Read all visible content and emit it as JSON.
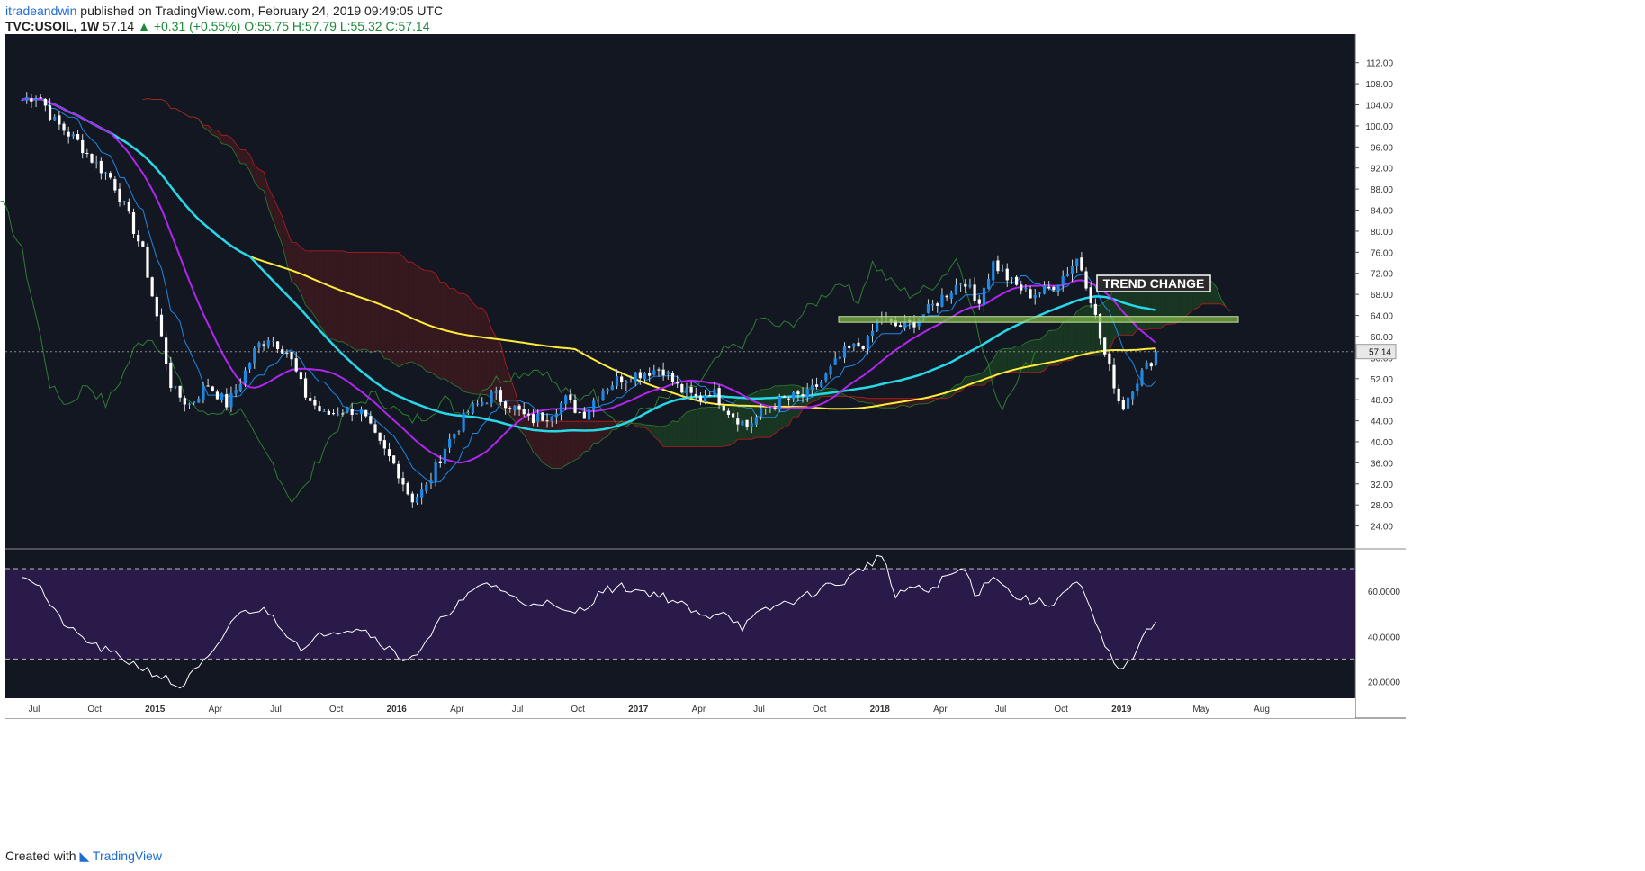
{
  "header": {
    "publisher": "itradeandwin",
    "published_text": "published on TradingView.com, February 24, 2019 09:49:05 UTC",
    "symbol": "TVC:USOIL, 1W",
    "last": "57.14",
    "change": "+0.31 (+0.55%)",
    "ohlc": "O:55.75 H:57.79 L:55.32 C:57.14"
  },
  "footer": {
    "created_with": "Created with",
    "brand": "TradingView"
  },
  "colors": {
    "background": "#131722",
    "candle_up": "#1e88e5",
    "candle_down": "#ffffff",
    "ma_long": "#ffeb3b",
    "ma_mid": "#26d8e8",
    "ma_short": "#b026f0",
    "conversion_line": "#1e88e5",
    "lagging_span": "#2e7d32",
    "cloud_bull": "#1b3a23",
    "cloud_bear": "#3a1a1e",
    "rsi_line": "#ffffff",
    "rsi_band": "#2a1a4a",
    "zone": "#7cb342"
  },
  "annotations": {
    "trend_change": "TREND CHANGE",
    "price_label": "57.14"
  },
  "chart_data": {
    "type": "candlestick",
    "title": "TVC:USOIL, 1W",
    "x_ticks": [
      "Jul",
      "Oct",
      "2015",
      "Apr",
      "Jul",
      "Oct",
      "2016",
      "Apr",
      "Jul",
      "Oct",
      "2017",
      "Apr",
      "Jul",
      "Oct",
      "2018",
      "Apr",
      "Jul",
      "Oct",
      "2019",
      "May",
      "Aug"
    ],
    "y_ticks": [
      "112.00",
      "108.00",
      "104.00",
      "100.00",
      "96.00",
      "92.00",
      "88.00",
      "84.00",
      "80.00",
      "76.00",
      "72.00",
      "68.00",
      "64.00",
      "60.00",
      "56.00",
      "52.00",
      "48.00",
      "44.00",
      "40.00",
      "36.00",
      "32.00",
      "28.00",
      "24.00"
    ],
    "ylim": [
      20,
      114
    ],
    "last_price": 57.14,
    "resistance_zone": [
      62.7,
      63.8
    ],
    "price_anchors": [
      [
        2014.45,
        105
      ],
      [
        2014.52,
        106
      ],
      [
        2014.58,
        101
      ],
      [
        2014.68,
        97
      ],
      [
        2014.75,
        93
      ],
      [
        2014.82,
        90
      ],
      [
        2014.88,
        84
      ],
      [
        2014.95,
        76
      ],
      [
        2015.03,
        59
      ],
      [
        2015.07,
        50
      ],
      [
        2015.14,
        47
      ],
      [
        2015.22,
        51
      ],
      [
        2015.3,
        47
      ],
      [
        2015.37,
        53
      ],
      [
        2015.42,
        58
      ],
      [
        2015.47,
        60
      ],
      [
        2015.55,
        57
      ],
      [
        2015.62,
        49
      ],
      [
        2015.7,
        45
      ],
      [
        2015.77,
        46
      ],
      [
        2015.85,
        46
      ],
      [
        2015.92,
        40
      ],
      [
        2016.0,
        35
      ],
      [
        2016.06,
        29
      ],
      [
        2016.12,
        31
      ],
      [
        2016.2,
        39
      ],
      [
        2016.3,
        46
      ],
      [
        2016.4,
        49
      ],
      [
        2016.47,
        47
      ],
      [
        2016.55,
        44
      ],
      [
        2016.62,
        45
      ],
      [
        2016.7,
        48
      ],
      [
        2016.77,
        45
      ],
      [
        2016.85,
        50
      ],
      [
        2016.92,
        52
      ],
      [
        2017.0,
        53
      ],
      [
        2017.1,
        54
      ],
      [
        2017.17,
        50
      ],
      [
        2017.25,
        48
      ],
      [
        2017.3,
        50
      ],
      [
        2017.37,
        46
      ],
      [
        2017.45,
        43
      ],
      [
        2017.52,
        46
      ],
      [
        2017.6,
        48
      ],
      [
        2017.7,
        49
      ],
      [
        2017.77,
        52
      ],
      [
        2017.85,
        57
      ],
      [
        2017.95,
        59
      ],
      [
        2018.0,
        64
      ],
      [
        2018.05,
        62
      ],
      [
        2018.12,
        62
      ],
      [
        2018.2,
        65
      ],
      [
        2018.27,
        68
      ],
      [
        2018.35,
        71
      ],
      [
        2018.4,
        66
      ],
      [
        2018.47,
        74
      ],
      [
        2018.55,
        70
      ],
      [
        2018.62,
        68
      ],
      [
        2018.7,
        69
      ],
      [
        2018.77,
        72
      ],
      [
        2018.82,
        75
      ],
      [
        2018.87,
        68
      ],
      [
        2018.92,
        58
      ],
      [
        2018.97,
        51
      ],
      [
        2019.0,
        46
      ],
      [
        2019.05,
        51
      ],
      [
        2019.1,
        54
      ],
      [
        2019.15,
        57.14
      ]
    ],
    "rsi": {
      "ticks": [
        "60.0000",
        "40.0000",
        "20.0000"
      ],
      "overbought": 70,
      "oversold": 30,
      "ylim": [
        13,
        78
      ],
      "anchors": [
        [
          2014.45,
          68
        ],
        [
          2014.52,
          63
        ],
        [
          2014.58,
          51
        ],
        [
          2014.66,
          42
        ],
        [
          2014.75,
          36
        ],
        [
          2014.85,
          31
        ],
        [
          2014.95,
          26
        ],
        [
          2015.05,
          21
        ],
        [
          2015.1,
          17
        ],
        [
          2015.17,
          25
        ],
        [
          2015.25,
          33
        ],
        [
          2015.32,
          48
        ],
        [
          2015.4,
          52
        ],
        [
          2015.47,
          51
        ],
        [
          2015.55,
          41
        ],
        [
          2015.62,
          34
        ],
        [
          2015.7,
          42
        ],
        [
          2015.77,
          43
        ],
        [
          2015.85,
          44
        ],
        [
          2015.93,
          38
        ],
        [
          2016.02,
          30
        ],
        [
          2016.1,
          33
        ],
        [
          2016.2,
          50
        ],
        [
          2016.3,
          58
        ],
        [
          2016.37,
          64
        ],
        [
          2016.45,
          60
        ],
        [
          2016.52,
          54
        ],
        [
          2016.6,
          56
        ],
        [
          2016.7,
          50
        ],
        [
          2016.77,
          52
        ],
        [
          2016.85,
          60
        ],
        [
          2016.92,
          62
        ],
        [
          2017.02,
          60
        ],
        [
          2017.1,
          58
        ],
        [
          2017.18,
          54
        ],
        [
          2017.27,
          48
        ],
        [
          2017.35,
          52
        ],
        [
          2017.43,
          44
        ],
        [
          2017.5,
          50
        ],
        [
          2017.58,
          54
        ],
        [
          2017.68,
          57
        ],
        [
          2017.77,
          62
        ],
        [
          2017.85,
          64
        ],
        [
          2017.95,
          72
        ],
        [
          2018.02,
          76
        ],
        [
          2018.06,
          56
        ],
        [
          2018.12,
          62
        ],
        [
          2018.2,
          60
        ],
        [
          2018.27,
          66
        ],
        [
          2018.35,
          70
        ],
        [
          2018.4,
          58
        ],
        [
          2018.47,
          68
        ],
        [
          2018.55,
          58
        ],
        [
          2018.62,
          56
        ],
        [
          2018.7,
          54
        ],
        [
          2018.77,
          60
        ],
        [
          2018.82,
          64
        ],
        [
          2018.87,
          52
        ],
        [
          2018.92,
          38
        ],
        [
          2018.97,
          28
        ],
        [
          2019.02,
          26
        ],
        [
          2019.07,
          36
        ],
        [
          2019.12,
          44
        ],
        [
          2019.15,
          48
        ]
      ]
    }
  }
}
